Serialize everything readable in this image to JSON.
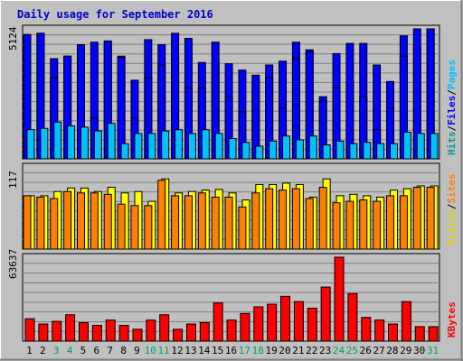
{
  "chart_data": {
    "type": "bar",
    "title": "Daily usage for September 2016",
    "colors": {
      "background": "#c0c0c0",
      "title": "#0000cc",
      "hits": "#009999",
      "files": "#0000ff",
      "pages": "#00c0ff",
      "visits": "#ffff00",
      "sites": "#ff8000",
      "kbytes": "#ff0000",
      "weekend_label": "#00a060",
      "day_label": "#000000"
    },
    "days": [
      "1",
      "2",
      "3",
      "4",
      "5",
      "6",
      "7",
      "8",
      "9",
      "10",
      "11",
      "12",
      "13",
      "14",
      "15",
      "16",
      "17",
      "18",
      "19",
      "20",
      "21",
      "22",
      "23",
      "24",
      "25",
      "26",
      "27",
      "28",
      "29",
      "30",
      "31"
    ],
    "weekend_days": [
      "3",
      "4",
      "10",
      "11",
      "17",
      "18",
      "24",
      "25",
      "31"
    ],
    "panels": [
      {
        "id": "hits",
        "max_label": "5124",
        "legend": [
          {
            "text": "Hits",
            "color": "#009999"
          },
          {
            "text": "/",
            "color": "#000000"
          },
          {
            "text": "Files",
            "color": "#0000ff"
          },
          {
            "text": "/",
            "color": "#000000"
          },
          {
            "text": "Pages",
            "color": "#00c0ff"
          }
        ],
        "ymax": 5124,
        "series": [
          {
            "name": "Hits",
            "color": "#0000ff",
            "values": [
              4900,
              4950,
              3950,
              4050,
              4500,
              4600,
              4560,
              4050,
              3100,
              4700,
              4500,
              4100,
              4750,
              3800,
              3800,
              3750,
              3500,
              3050,
              3700,
              3850,
              4600,
              4300,
              2450,
              4150,
              3000,
              4550,
              3700,
              3050,
              4850,
              4450,
              5124
            ]
          },
          {
            "name": "Files",
            "color": "#0000ff",
            "values": [
              4900,
              4950,
              3200,
              4050,
              4500,
              1600,
              4650,
              4000,
              1600,
              3200,
              3700,
              4950,
              2800,
              2800,
              4600,
              2450,
              1850,
              3300,
              3200,
              2000,
              3950,
              4200,
              2300,
              2800,
              4550,
              2450,
              1150,
              2000,
              4050,
              5124,
              5124
            ]
          },
          {
            "name": "Pages",
            "color": "#00c0ff",
            "values": [
              1150,
              1200,
              1450,
              1300,
              1250,
              1100,
              1400,
              600,
              1000,
              1000,
              1100,
              1150,
              1000,
              1150,
              1000,
              800,
              650,
              500,
              700,
              900,
              750,
              900,
              550,
              700,
              600,
              650,
              600,
              600,
              1050,
              1000,
              1000
            ]
          }
        ]
      },
      {
        "id": "visits",
        "max_label": "117",
        "legend": [
          {
            "text": "Visits",
            "color": "#e0d000"
          },
          {
            "text": "/",
            "color": "#000000"
          },
          {
            "text": "Sites",
            "color": "#ff8000"
          }
        ],
        "ymax": 117,
        "series": [
          {
            "name": "Visits",
            "color": "#ffff00",
            "values": [
              76,
              76,
              82,
              87,
              87,
              82,
              88,
              80,
              82,
              68,
              100,
              80,
              82,
              84,
              85,
              80,
              70,
              92,
              92,
              94,
              92,
              74,
              100,
              76,
              78,
              76,
              74,
              84,
              86,
              90,
              90
            ]
          },
          {
            "name": "Sites",
            "color": "#ff8000",
            "values": [
              76,
              74,
              72,
              82,
              80,
              80,
              78,
              64,
              62,
              62,
              98,
              76,
              76,
              80,
              74,
              74,
              60,
              80,
              86,
              84,
              86,
              72,
              88,
              66,
              68,
              70,
              68,
              76,
              76,
              88,
              88
            ]
          }
        ]
      },
      {
        "id": "kbytes",
        "max_label": "63637",
        "legend": [
          {
            "text": "KBytes",
            "color": "#ff0000"
          }
        ],
        "ymax": 63637,
        "series": [
          {
            "name": "KBytes",
            "color": "#ff0000",
            "values": [
              17000,
              13000,
              15000,
              20000,
              14000,
              12000,
              16000,
              12000,
              9000,
              16000,
              20000,
              9000,
              13000,
              14000,
              29000,
              16000,
              21000,
              26000,
              28000,
              34000,
              30000,
              25000,
              41000,
              63637,
              36000,
              18000,
              16000,
              13000,
              30000,
              11000,
              11000
            ]
          }
        ]
      }
    ]
  }
}
